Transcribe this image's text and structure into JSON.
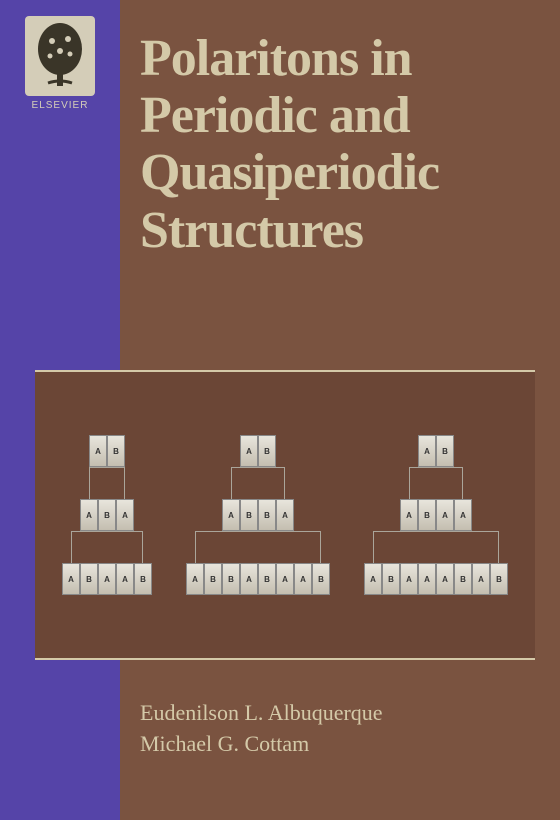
{
  "publisher": {
    "name": "ELSEVIER",
    "logo_bg": "#d4cdb8",
    "logo_fg": "#3a3528"
  },
  "title": {
    "line1": "Polaritons in",
    "line2": "Periodic and",
    "line3": "Quasiperiodic",
    "line4": "Structures",
    "color": "#d4c9a8",
    "fontsize": 52
  },
  "colors": {
    "left_strip": "#5544a8",
    "right_bg": "#7a5340",
    "diagram_bg": "#6b4636",
    "cell_top": "#e8e5dc",
    "cell_bottom": "#c4beb0",
    "accent": "#d4c9a8"
  },
  "diagram": {
    "trees": [
      {
        "rows": [
          [
            "A",
            "B"
          ],
          [
            "A",
            "B",
            "A"
          ],
          [
            "A",
            "B",
            "A",
            "A",
            "B"
          ]
        ]
      },
      {
        "rows": [
          [
            "A",
            "B"
          ],
          [
            "A",
            "B",
            "B",
            "A"
          ],
          [
            "A",
            "B",
            "B",
            "A",
            "B",
            "A",
            "A",
            "B"
          ]
        ]
      },
      {
        "rows": [
          [
            "A",
            "B"
          ],
          [
            "A",
            "B",
            "A",
            "A"
          ],
          [
            "A",
            "B",
            "A",
            "A",
            "A",
            "B",
            "A",
            "B"
          ]
        ]
      }
    ]
  },
  "authors": {
    "line1": "Eudenilson L. Albuquerque",
    "line2": "Michael G. Cottam"
  }
}
